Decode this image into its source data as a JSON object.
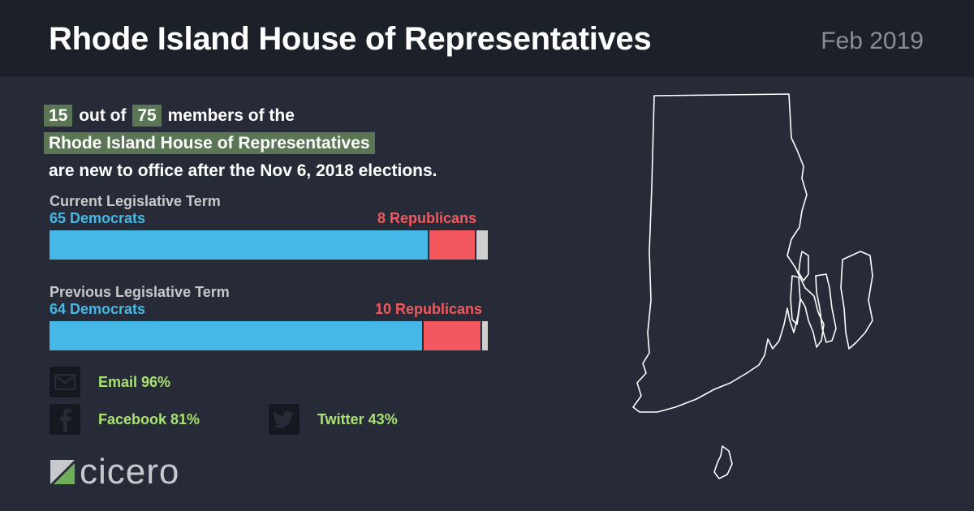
{
  "header": {
    "title": "Rhode Island House of Representatives",
    "date": "Feb 2019"
  },
  "headline": {
    "new_count": "15",
    "text_out_of": "out of",
    "total": "75",
    "text_members_of": "members of the",
    "body_name": "Rhode Island House of Representatives",
    "text_rest": "are new to office after the Nov 6, 2018 elections."
  },
  "chart_data": {
    "type": "bar",
    "orientation": "horizontal",
    "stacked": true,
    "total_seats": 75,
    "categories": [
      "Current Legislative Term",
      "Previous Legislative Term"
    ],
    "series": [
      {
        "name": "Democrats",
        "color": "#45b8e8",
        "values": [
          65,
          64
        ]
      },
      {
        "name": "Republicans",
        "color": "#f2585d",
        "values": [
          8,
          10
        ]
      },
      {
        "color": "#cfcfcf",
        "values": [
          2,
          1
        ]
      }
    ],
    "labels": {
      "current": {
        "title": "Current Legislative Term",
        "dem": "65 Democrats",
        "rep": "8 Republicans"
      },
      "previous": {
        "title": "Previous Legislative Term",
        "dem": "64 Democrats",
        "rep": "10 Republicans"
      }
    }
  },
  "social": {
    "email": {
      "label": "Email 96%",
      "icon": "envelope-icon"
    },
    "facebook": {
      "label": "Facebook 81%",
      "icon": "facebook-icon"
    },
    "twitter": {
      "label": "Twitter 43%",
      "icon": "twitter-icon"
    }
  },
  "logo": {
    "text": "cicero"
  }
}
